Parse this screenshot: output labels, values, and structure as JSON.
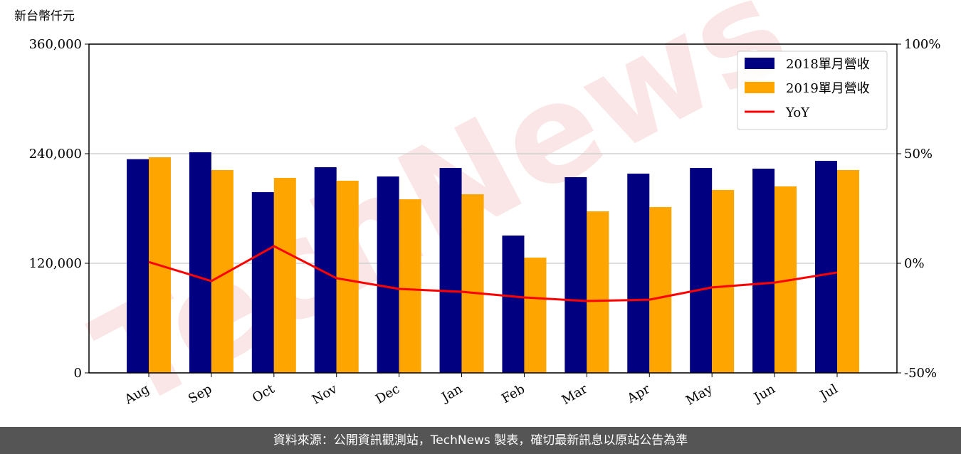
{
  "chart_data": {
    "type": "bar",
    "unit_label": "新台幣仟元",
    "watermark": "TechNews",
    "categories": [
      "Aug",
      "Sep",
      "Oct",
      "Nov",
      "Dec",
      "Jan",
      "Feb",
      "Mar",
      "Apr",
      "May",
      "Jun",
      "Jul"
    ],
    "series": [
      {
        "name": "2018單月營收",
        "color": "#000080",
        "type": "bar",
        "values": [
          234000,
          241600,
          197900,
          225200,
          215100,
          224400,
          150400,
          214300,
          218200,
          224400,
          223600,
          232200
        ]
      },
      {
        "name": "2019單月營收",
        "color": "#ffa500",
        "type": "bar",
        "values": [
          236100,
          222100,
          213500,
          210400,
          190100,
          195600,
          126200,
          176900,
          181600,
          200300,
          204200,
          222100
        ]
      },
      {
        "name": "YoY",
        "color": "#ff0000",
        "type": "line",
        "axis": "y2",
        "values": [
          0.6,
          -8.1,
          7.8,
          -6.8,
          -11.7,
          -13,
          -15.6,
          -17.2,
          -16.6,
          -11,
          -8.8,
          -4.2
        ]
      }
    ],
    "ylim": [
      0,
      360000
    ],
    "yticks": [
      {
        "value": 0,
        "label": "0"
      },
      {
        "value": 120000,
        "label": "120,000"
      },
      {
        "value": 240000,
        "label": "240,000"
      },
      {
        "value": 360000,
        "label": "360,000"
      }
    ],
    "y2lim": [
      -50,
      100
    ],
    "y2ticks": [
      {
        "value": -50,
        "label": "-50%"
      },
      {
        "value": 0,
        "label": "0%"
      },
      {
        "value": 50,
        "label": "50%"
      },
      {
        "value": 100,
        "label": "100%"
      }
    ],
    "grid": true,
    "legend": "upper right",
    "footer": "資料來源：公開資訊觀測站，TechNews 製表，確切最新訊息以原站公告為準"
  }
}
